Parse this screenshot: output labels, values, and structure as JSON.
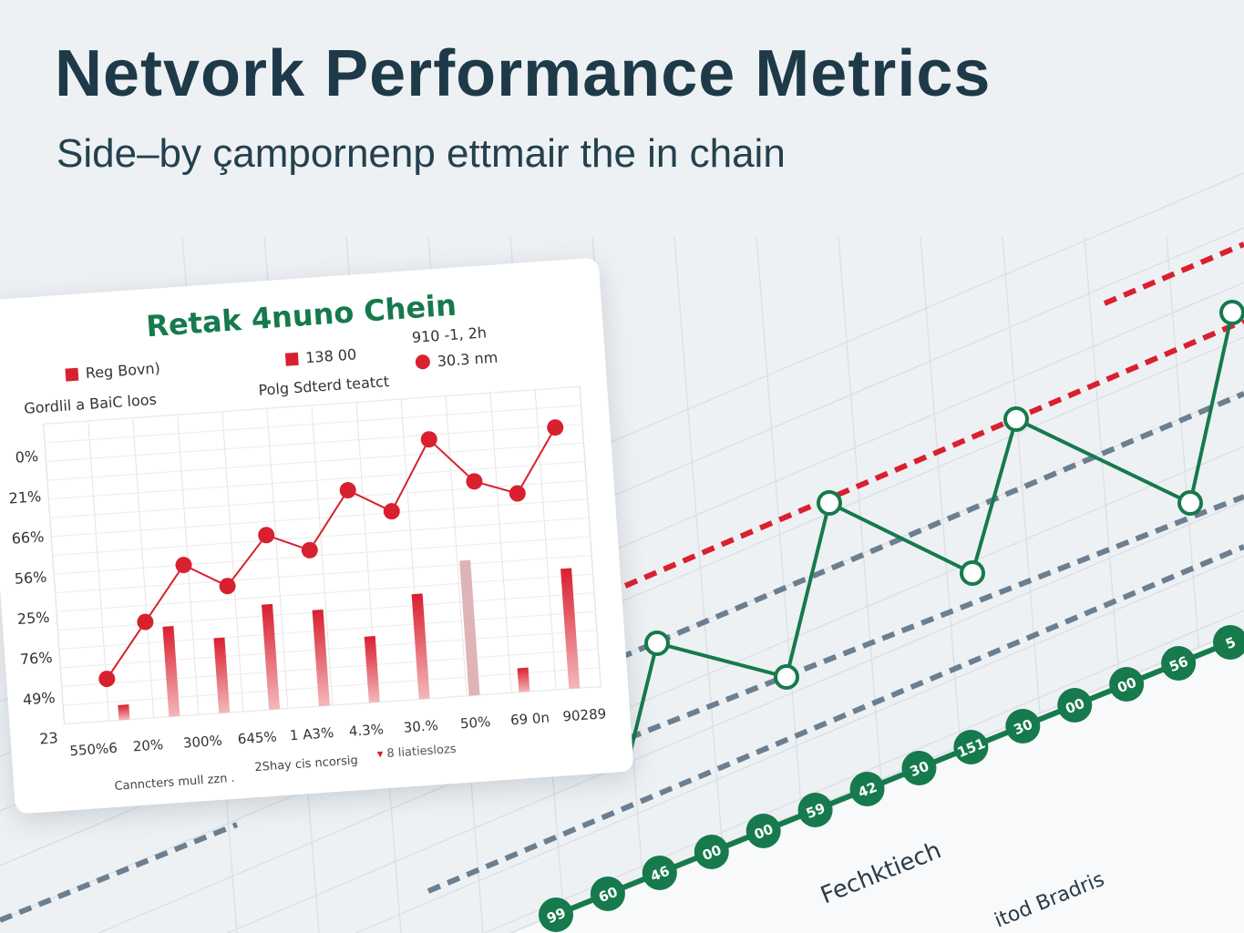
{
  "header": {
    "title": "Netvork Performance Metrics",
    "subtitle": "Side–by çampornenp ettmair the in chain"
  },
  "colors": {
    "green": "#167a4c",
    "red": "#d9202e",
    "slate": "#6b7f90",
    "title": "#1e3a48"
  },
  "chart_data": [
    {
      "type": "bar+line",
      "title": "Retak 4nuno Chein",
      "legend": [
        {
          "marker": "square",
          "label": "Reg Bovn)"
        },
        {
          "marker": "square",
          "label": "138 00"
        },
        {
          "marker": "text",
          "label": "910 -1, 2h"
        },
        {
          "marker": "circle",
          "label": "30.3 nm"
        }
      ],
      "legend_sublabels": [
        "Gordlil a BaiC loos",
        "Polg Sdterd teatct"
      ],
      "y_tick_labels": [
        "0%",
        "21%",
        "66%",
        "56%",
        "25%",
        "76%",
        "49%",
        "23"
      ],
      "x_tick_labels": [
        "550%6",
        "20%",
        "300%",
        "645%",
        "1 A3%",
        "4.3%",
        "30.%",
        "50%",
        "69 0n",
        "90289"
      ],
      "line_values": [
        14,
        32,
        50,
        42,
        58,
        52,
        71,
        63,
        86,
        71,
        66,
        87
      ],
      "bar_values": [
        5,
        30,
        25,
        35,
        32,
        22,
        35,
        45,
        8,
        40
      ],
      "ylim": [
        0,
        100
      ],
      "grid": true,
      "footer": [
        "Canncters mull zzn .",
        "2Shay cis ncorsig",
        "8 liatieslozs"
      ]
    },
    {
      "type": "line",
      "series": [
        {
          "style": "solid-green-hollow-markers",
          "values": [
            0,
            40,
            30,
            78,
            58,
            100,
            78,
            130
          ]
        },
        {
          "style": "green-beaded",
          "labels": [
            "99",
            "60",
            "46",
            "00",
            "00",
            "59",
            "42",
            "30",
            "151",
            "30",
            "00",
            "00",
            "56",
            "5"
          ]
        }
      ],
      "annotations": [
        "Fechktiech",
        "itod Bradris"
      ],
      "grid": true
    }
  ]
}
